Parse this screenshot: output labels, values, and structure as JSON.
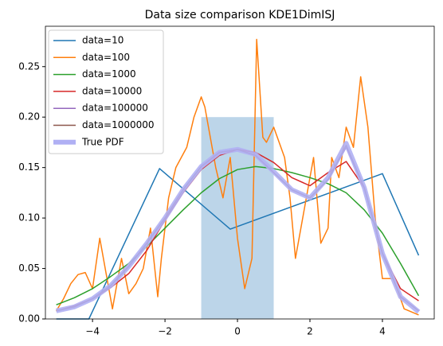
{
  "chart_data": {
    "type": "line",
    "title": "Data size comparison KDE1DimISJ",
    "xlim": [
      -5.3,
      5.43
    ],
    "ylim": [
      0,
      0.29
    ],
    "xticks": [
      {
        "value": -4,
        "label": "−4"
      },
      {
        "value": -2,
        "label": "−2"
      },
      0,
      2,
      4
    ],
    "yticks": [
      {
        "value": 0,
        "label": "0.00"
      },
      {
        "value": 0.05,
        "label": "0.05"
      },
      {
        "value": 0.1,
        "label": "0.10"
      },
      {
        "value": 0.15,
        "label": "0.15"
      },
      {
        "value": 0.2,
        "label": "0.20"
      },
      {
        "value": 0.25,
        "label": "0.25"
      }
    ],
    "legend": "upper left",
    "bar": {
      "x": [
        -1,
        1
      ],
      "height": 0.2,
      "color": "#bcd5e9"
    },
    "series": [
      {
        "name": "data=10",
        "color": "#1f77b4",
        "x": [
          -5,
          -4.1,
          -2.15,
          -0.2,
          4.0,
          5
        ],
        "values": [
          0,
          0,
          0.149,
          0.089,
          0.144,
          0.063
        ]
      },
      {
        "name": "data=100",
        "color": "#ff7f0e",
        "x": [
          -5,
          -4.8,
          -4.6,
          -4.4,
          -4.2,
          -4.0,
          -3.8,
          -3.6,
          -3.45,
          -3.2,
          -3.0,
          -2.8,
          -2.6,
          -2.4,
          -2.2,
          -2.1,
          -1.9,
          -1.7,
          -1.4,
          -1.2,
          -1.0,
          -0.9,
          -0.6,
          -0.4,
          -0.2,
          0,
          0.2,
          0.4,
          0.53,
          0.7,
          0.8,
          1.0,
          1.3,
          1.45,
          1.6,
          1.9,
          2.1,
          2.3,
          2.5,
          2.6,
          2.8,
          3.0,
          3.2,
          3.4,
          3.6,
          3.8,
          4.0,
          4.3,
          4.6,
          5.0
        ],
        "values": [
          0.008,
          0.02,
          0.035,
          0.044,
          0.046,
          0.03,
          0.08,
          0.04,
          0.01,
          0.06,
          0.025,
          0.035,
          0.05,
          0.09,
          0.022,
          0.06,
          0.12,
          0.15,
          0.17,
          0.2,
          0.22,
          0.21,
          0.15,
          0.12,
          0.16,
          0.08,
          0.03,
          0.06,
          0.277,
          0.18,
          0.175,
          0.19,
          0.16,
          0.12,
          0.06,
          0.12,
          0.16,
          0.075,
          0.09,
          0.16,
          0.14,
          0.19,
          0.17,
          0.24,
          0.19,
          0.1,
          0.04,
          0.04,
          0.01,
          0.004
        ]
      },
      {
        "name": "data=1000",
        "color": "#2ca02c",
        "x": [
          -5,
          -4.5,
          -4,
          -3.5,
          -3,
          -2.5,
          -2,
          -1.5,
          -1,
          -0.5,
          0,
          0.5,
          1,
          1.5,
          2,
          2.5,
          3,
          3.5,
          4,
          4.5,
          5
        ],
        "values": [
          0.014,
          0.021,
          0.03,
          0.042,
          0.055,
          0.072,
          0.09,
          0.108,
          0.125,
          0.139,
          0.148,
          0.151,
          0.149,
          0.145,
          0.14,
          0.134,
          0.125,
          0.108,
          0.085,
          0.055,
          0.023
        ]
      },
      {
        "name": "data=10000",
        "color": "#d62728",
        "x": [
          -5,
          -4.5,
          -4,
          -3.5,
          -3,
          -2.5,
          -2,
          -1.5,
          -1,
          -0.5,
          0,
          0.5,
          1,
          1.5,
          2,
          2.5,
          3,
          3.5,
          4,
          4.5,
          5
        ],
        "values": [
          0.008,
          0.013,
          0.02,
          0.031,
          0.045,
          0.068,
          0.098,
          0.125,
          0.148,
          0.162,
          0.168,
          0.165,
          0.155,
          0.14,
          0.132,
          0.145,
          0.156,
          0.13,
          0.065,
          0.03,
          0.018
        ]
      },
      {
        "name": "data=100000",
        "color": "#9467bd",
        "x": [
          -5,
          -4.5,
          -4,
          -3.5,
          -3,
          -2.5,
          -2,
          -1.5,
          -1,
          -0.5,
          0,
          0.5,
          1,
          1.5,
          2,
          2.5,
          3,
          3.5,
          4,
          4.5,
          5
        ],
        "values": [
          0.008,
          0.012,
          0.02,
          0.033,
          0.052,
          0.075,
          0.1,
          0.128,
          0.151,
          0.165,
          0.168,
          0.162,
          0.145,
          0.128,
          0.12,
          0.138,
          0.17,
          0.13,
          0.065,
          0.022,
          0.008
        ]
      },
      {
        "name": "data=1000000",
        "color": "#8c564b",
        "x": [
          -5,
          -4.5,
          -4,
          -3.5,
          -3,
          -2.5,
          -2,
          -1.5,
          -1,
          -0.5,
          0,
          0.5,
          1,
          1.5,
          2,
          2.5,
          3,
          3.5,
          4,
          4.5,
          5
        ],
        "values": [
          0.008,
          0.012,
          0.02,
          0.033,
          0.052,
          0.075,
          0.1,
          0.128,
          0.151,
          0.165,
          0.168,
          0.162,
          0.145,
          0.128,
          0.12,
          0.138,
          0.172,
          0.13,
          0.065,
          0.022,
          0.008
        ]
      },
      {
        "name": "True PDF",
        "color": "#b0b0f4",
        "width": 6,
        "x": [
          -5,
          -4.5,
          -4,
          -3.5,
          -3,
          -2.5,
          -2,
          -1.5,
          -1,
          -0.5,
          0,
          0.5,
          1,
          1.5,
          2,
          2.5,
          3,
          3.5,
          4,
          4.5,
          5
        ],
        "values": [
          0.008,
          0.012,
          0.02,
          0.033,
          0.052,
          0.075,
          0.1,
          0.128,
          0.151,
          0.165,
          0.168,
          0.163,
          0.146,
          0.128,
          0.12,
          0.14,
          0.174,
          0.13,
          0.065,
          0.022,
          0.007
        ]
      }
    ]
  }
}
